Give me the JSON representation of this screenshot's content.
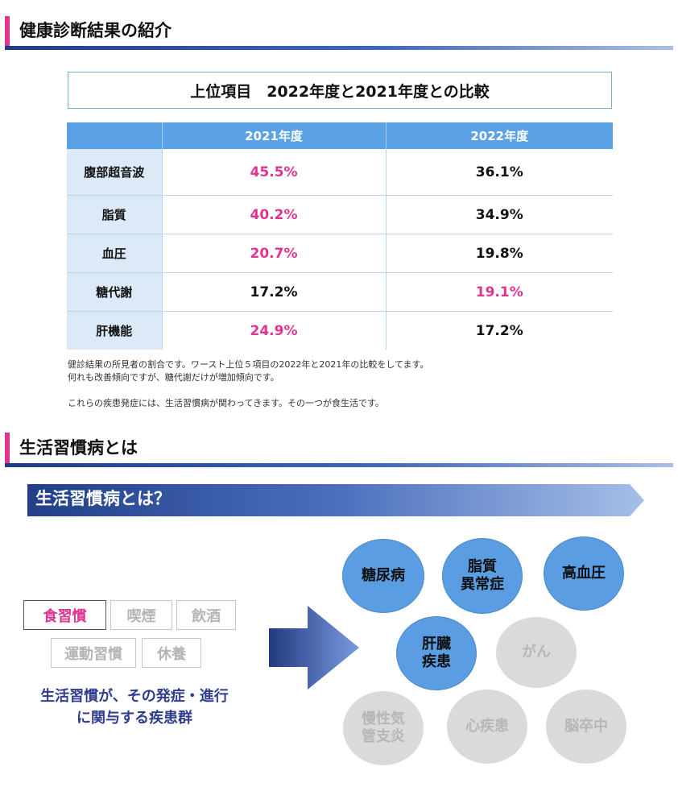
{
  "section1": {
    "title": "健康診断結果の紹介"
  },
  "comparison": {
    "title": "上位項目　2022年度と2021年度との比較",
    "columns": [
      "",
      "2021年度",
      "2022年度"
    ],
    "rows": [
      {
        "item": "腹部超音波",
        "y2021": "45.5%",
        "y2022": "36.1%"
      },
      {
        "item": "脂質",
        "y2021": "40.2%",
        "y2022": "34.9%"
      },
      {
        "item": "血圧",
        "y2021": "20.7%",
        "y2022": "19.8%"
      },
      {
        "item": "糖代謝",
        "y2021": "17.2%",
        "y2022": "19.1%"
      },
      {
        "item": "肝機能",
        "y2021": "24.9%",
        "y2022": "17.2%"
      }
    ],
    "notes": [
      "健診結果の所見者の割合です。ワースト上位５項目の2022年と2021年の比較をしてます。",
      "何れも改善傾向ですが、糖代謝だけが増加傾向です。",
      "これらの疾患発症には、生活習慣病が関わってきます。その一つが食生活です。"
    ],
    "highlight_color": "#e0348f"
  },
  "section2": {
    "title": "生活習慣病とは"
  },
  "banner": {
    "title": "生活習慣病とは？"
  },
  "habits": [
    "食習慣",
    "喫煙",
    "飲酒",
    "運動習慣",
    "休養"
  ],
  "summary": [
    "生活習慣が、その発症・進行",
    "に関与する疾患群"
  ],
  "diseases": {
    "diabetes": "糖尿病",
    "lipid": [
      "脂質",
      "異常症"
    ],
    "hypertension": "高血圧",
    "liver": [
      "肝臓",
      "疾患"
    ],
    "cancer": "がん",
    "copd": [
      "慢性気",
      "管支炎"
    ],
    "heart": "心疾患",
    "stroke": "脳卒中"
  }
}
